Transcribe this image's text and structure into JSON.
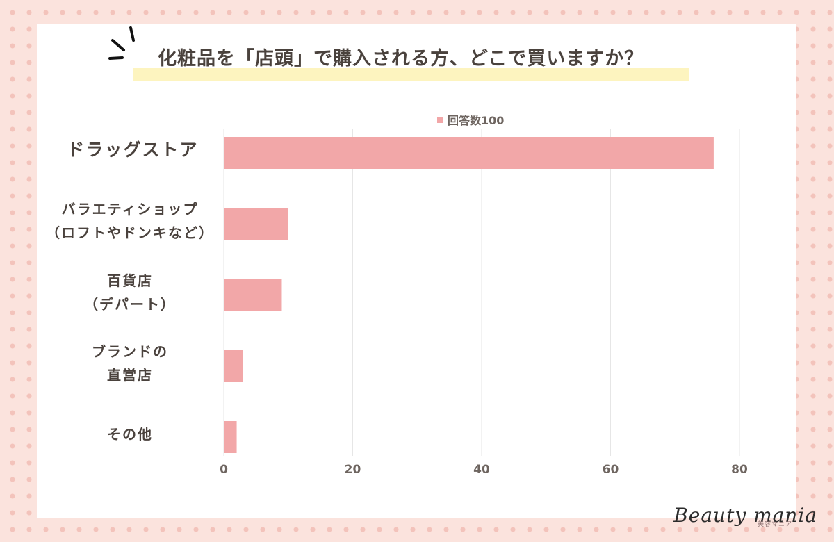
{
  "title": "化粧品を「店頭」で購入される方、どこで買いますか？",
  "legend": {
    "label": "回答数100"
  },
  "colors": {
    "bar": "#f2a7a8",
    "text": "#4a423d",
    "axis": "#6e6560",
    "grid": "#e6e6e6",
    "highlight": "#fdf4bf",
    "background": "#fbe3dd"
  },
  "brand": {
    "name": "Beauty mania",
    "sub": "美容マニア"
  },
  "chart_data": {
    "type": "bar",
    "orientation": "horizontal",
    "title": "化粧品を「店頭」で購入される方、どこで買いますか？",
    "categories": [
      [
        "ドラッグストア"
      ],
      [
        "バラエティショップ",
        "（ロフトやドンキなど）"
      ],
      [
        "百貨店",
        "（デパート）"
      ],
      [
        "ブランドの",
        "直営店"
      ],
      [
        "その他"
      ]
    ],
    "series": [
      {
        "name": "回答数100",
        "values": [
          76,
          10,
          9,
          3,
          2
        ]
      }
    ],
    "xlim": [
      0,
      80
    ],
    "xticks": [
      "0",
      "20",
      "40",
      "60",
      "80"
    ],
    "xlabel": "",
    "ylabel": "",
    "grid": true,
    "legend_position": "top-center"
  }
}
